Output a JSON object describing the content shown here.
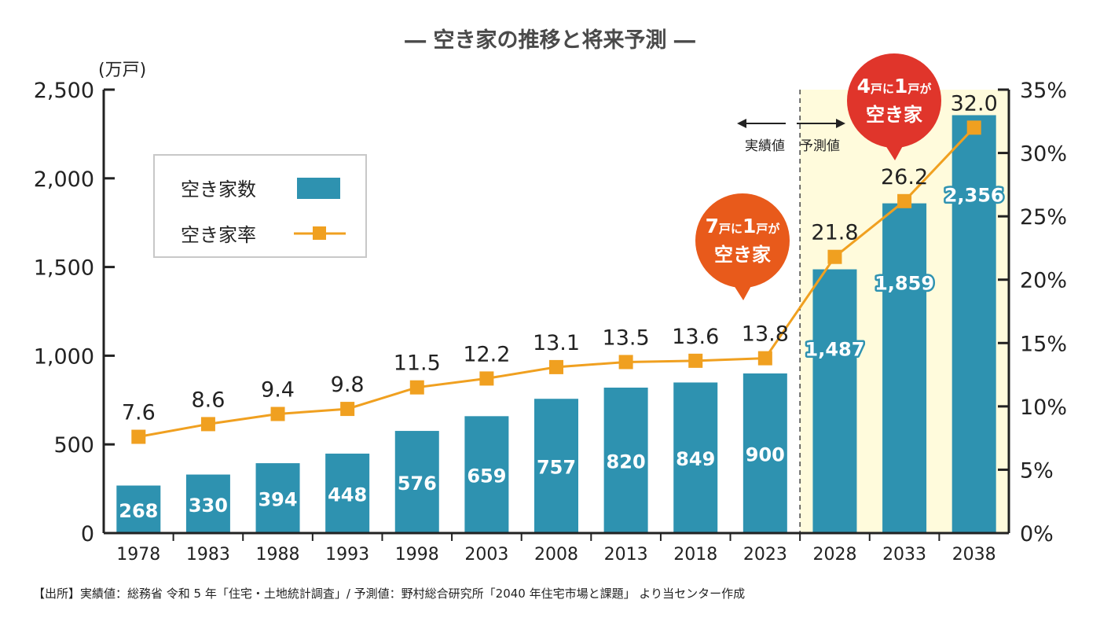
{
  "colors": {
    "bar": "#2e92b0",
    "line": "#f0a020",
    "forecast_bg": "#fffbdc",
    "callout_orange": "#e85a1b",
    "callout_red": "#e0352b"
  },
  "chart_data": {
    "type": "bar",
    "title": "― 空き家の推移と将来予測 ―",
    "categories": [
      "1978",
      "1983",
      "1988",
      "1993",
      "1998",
      "2003",
      "2008",
      "2013",
      "2018",
      "2023",
      "2028",
      "2033",
      "2038"
    ],
    "series": [
      {
        "name": "空き家数",
        "type": "bar",
        "axis": "left",
        "values": [
          268,
          330,
          394,
          448,
          576,
          659,
          757,
          820,
          849,
          900,
          1487,
          1859,
          2356
        ],
        "labels": [
          "268",
          "330",
          "394",
          "448",
          "576",
          "659",
          "757",
          "820",
          "849",
          "900",
          "1,487",
          "1,859",
          "2,356"
        ]
      },
      {
        "name": "空き家率",
        "type": "line",
        "axis": "right",
        "values": [
          7.6,
          8.6,
          9.4,
          9.8,
          11.5,
          12.2,
          13.1,
          13.5,
          13.6,
          13.8,
          21.8,
          26.2,
          32.0
        ],
        "labels": [
          "7.6",
          "8.6",
          "9.4",
          "9.8",
          "11.5",
          "12.2",
          "13.1",
          "13.5",
          "13.6",
          "13.8",
          "21.8",
          "26.2",
          "32.0"
        ]
      }
    ],
    "y_left": {
      "unit": "(万戸)",
      "range": [
        0,
        2500
      ],
      "ticks": [
        0,
        500,
        1000,
        1500,
        2000,
        2500
      ],
      "tick_labels": [
        "0",
        "500",
        "1,000",
        "1,500",
        "2,000",
        "2,500"
      ]
    },
    "y_right": {
      "range": [
        0,
        35
      ],
      "ticks": [
        0,
        5,
        10,
        15,
        20,
        25,
        30,
        35
      ],
      "tick_labels": [
        "0%",
        "5%",
        "10%",
        "15%",
        "20%",
        "25%",
        "30%",
        "35%"
      ]
    },
    "forecast_start_category": "2028",
    "legend": {
      "placement": "top-left",
      "items": [
        "空き家数",
        "空き家率"
      ]
    },
    "annotations": {
      "actual_label": "実績値",
      "forecast_label": "予測値",
      "callout_7": {
        "num1": "7",
        "unit1": "戸に",
        "num2": "1",
        "unit2": "戸が",
        "line2": "空き家",
        "points_to": "2023"
      },
      "callout_4": {
        "num1": "4",
        "unit1": "戸に",
        "num2": "1",
        "unit2": "戸が",
        "line2": "空き家",
        "points_to": "2033"
      }
    }
  },
  "source_note": "【出所】実績値：総務省 令和 5 年「住宅・土地統計調査」/ 予測値：野村総合研究所「2040 年住宅市場と課題」 より当センター作成"
}
